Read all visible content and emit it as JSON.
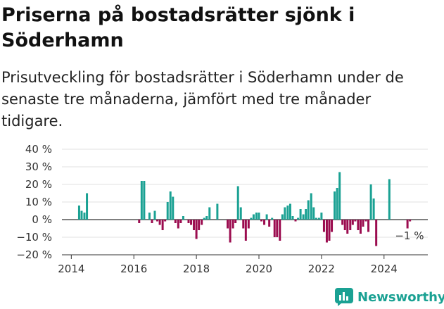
{
  "title": "Priserna på bostadsrätter sjönk i Söderhamn",
  "subtitle": "Prisutveckling för bostadsrätter i Söderhamn under de senaste tre månaderna, jämfört med tre månader tidigare.",
  "logo_text": "Newsworthy",
  "colors": {
    "positive": "#1aa193",
    "negative": "#9b0c4f",
    "grid": "#e0e0e0",
    "zero": "#333333"
  },
  "chart_data": {
    "type": "bar",
    "ylim": [
      -20,
      40
    ],
    "yticks": [
      "40 %",
      "30 %",
      "20 %",
      "10 %",
      "0 %",
      "−10 %",
      "−20 %"
    ],
    "ytick_values": [
      40,
      30,
      20,
      10,
      0,
      -10,
      -20
    ],
    "xticks": [
      "2014",
      "2016",
      "2018",
      "2020",
      "2022",
      "2024"
    ],
    "xtick_values": [
      2014,
      2016,
      2018,
      2020,
      2022,
      2024
    ],
    "xlim": [
      2013.7,
      2025.4
    ],
    "annotation": {
      "text": "−1 %",
      "x": 2024.8,
      "y": -1
    },
    "grid": true,
    "x": [
      2014.25,
      2014.33,
      2014.42,
      2014.5,
      2014.58,
      2016.17,
      2016.25,
      2016.33,
      2016.42,
      2016.5,
      2016.58,
      2016.67,
      2016.75,
      2016.83,
      2016.92,
      2017.0,
      2017.08,
      2017.17,
      2017.25,
      2017.33,
      2017.42,
      2017.5,
      2017.58,
      2017.67,
      2017.75,
      2017.83,
      2017.92,
      2018.0,
      2018.08,
      2018.17,
      2018.25,
      2018.33,
      2018.42,
      2018.5,
      2018.58,
      2018.67,
      2018.75,
      2018.83,
      2018.92,
      2019.0,
      2019.08,
      2019.17,
      2019.25,
      2019.33,
      2019.42,
      2019.5,
      2019.58,
      2019.67,
      2019.75,
      2019.83,
      2019.92,
      2020.0,
      2020.08,
      2020.17,
      2020.25,
      2020.33,
      2020.42,
      2020.5,
      2020.58,
      2020.67,
      2020.75,
      2020.83,
      2020.92,
      2021.0,
      2021.08,
      2021.17,
      2021.25,
      2021.33,
      2021.42,
      2021.5,
      2021.58,
      2021.67,
      2021.75,
      2021.83,
      2021.92,
      2022.0,
      2022.08,
      2022.17,
      2022.25,
      2022.33,
      2022.42,
      2022.5,
      2022.58,
      2022.67,
      2022.75,
      2022.83,
      2022.92,
      2023.0,
      2023.08,
      2023.17,
      2023.25,
      2023.33,
      2023.42,
      2023.5,
      2023.58,
      2023.67,
      2023.75,
      2024.08,
      2024.17,
      2024.75,
      2024.83
    ],
    "values": [
      8,
      5,
      4,
      15,
      0,
      -2,
      22,
      22,
      0,
      4,
      -2,
      5,
      -1,
      -3,
      -6,
      -1,
      10,
      16,
      13,
      -2,
      -5,
      -2,
      2,
      0,
      -2,
      -3,
      -6,
      -11,
      -6,
      -3,
      1,
      2,
      7,
      0,
      0,
      9,
      0,
      0,
      0,
      -5,
      -13,
      -5,
      -2,
      19,
      7,
      -5,
      -12,
      -5,
      1,
      3,
      4,
      4,
      -1,
      -3,
      3,
      -4,
      1,
      -10,
      -10,
      -12,
      3,
      7,
      8,
      9,
      2,
      -1,
      1,
      6,
      3,
      6,
      11,
      15,
      7,
      1,
      1,
      4,
      -7,
      -13,
      -12,
      -7,
      16,
      18,
      27,
      -3,
      -6,
      -8,
      -6,
      -3,
      -1,
      -6,
      -8,
      -4,
      -1,
      -7,
      20,
      12,
      -15,
      0,
      23,
      -5,
      -1
    ]
  }
}
